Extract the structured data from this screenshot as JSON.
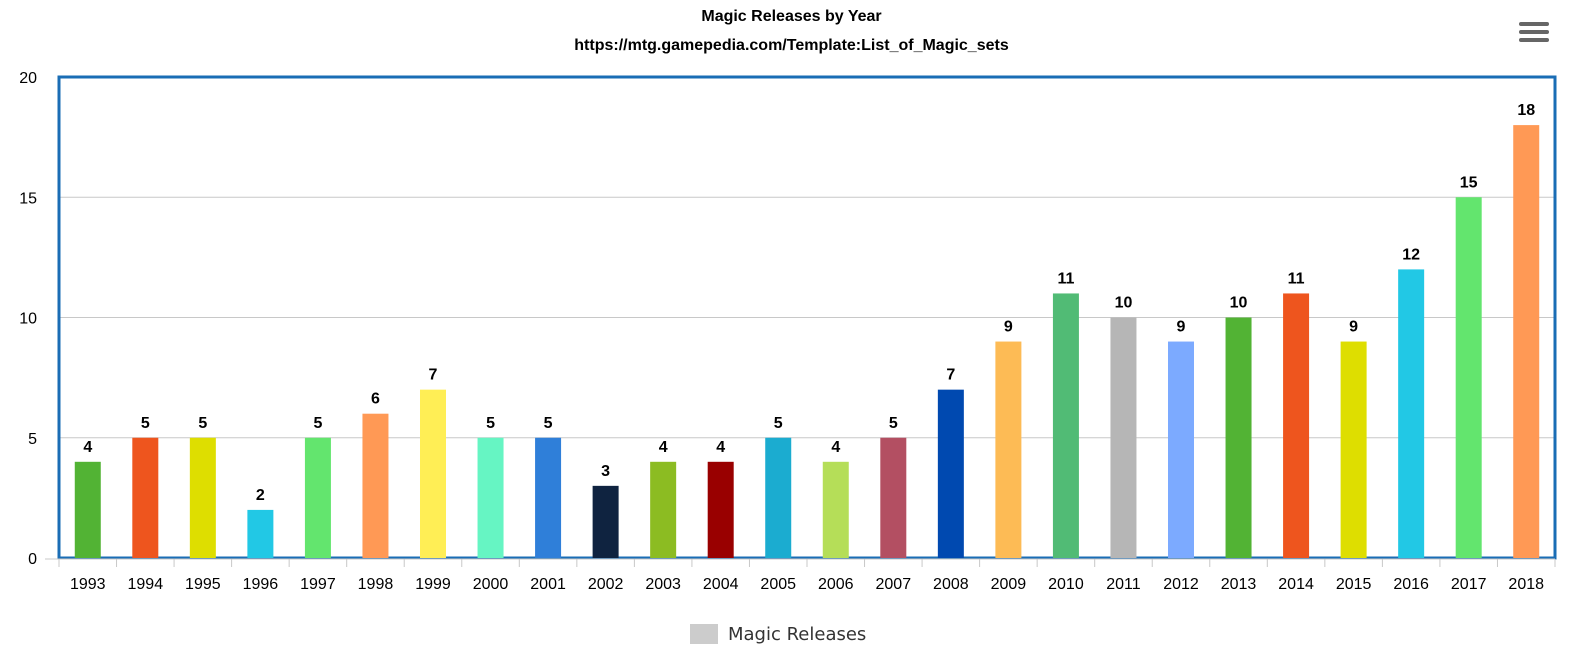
{
  "chart_data": {
    "type": "bar",
    "title": "Magic Releases by Year",
    "subtitle": "https://mtg.gamepedia.com/Template:List_of_Magic_sets",
    "categories": [
      "1993",
      "1994",
      "1995",
      "1996",
      "1997",
      "1998",
      "1999",
      "2000",
      "2001",
      "2002",
      "2003",
      "2004",
      "2005",
      "2006",
      "2007",
      "2008",
      "2009",
      "2010",
      "2011",
      "2012",
      "2013",
      "2014",
      "2015",
      "2016",
      "2017",
      "2018"
    ],
    "series": [
      {
        "name": "Magic Releases",
        "values": [
          4,
          5,
          5,
          2,
          5,
          6,
          7,
          5,
          5,
          3,
          4,
          4,
          5,
          4,
          5,
          7,
          9,
          11,
          10,
          9,
          10,
          11,
          9,
          12,
          15,
          18
        ]
      }
    ],
    "bar_colors": [
      "#52b334",
      "#ee551e",
      "#dede00",
      "#22c8e5",
      "#63e56e",
      "#ff9955",
      "#ffee55",
      "#66f5c3",
      "#2f7fd9",
      "#0f2340",
      "#8cbc22",
      "#990000",
      "#1bacd0",
      "#b5de58",
      "#b34f62",
      "#0049b0",
      "#fdbb55",
      "#51bb75",
      "#b6b6b6",
      "#7caaff",
      "#52b334",
      "#ee551e",
      "#dede00",
      "#22c8e5",
      "#63e56e",
      "#ff9955"
    ],
    "ylim": [
      0,
      20
    ],
    "yticks": [
      0,
      5,
      10,
      15,
      20
    ],
    "legend_position": "bottom-center",
    "legend_color": "#cccccc",
    "plot_border_color": "#1a6db5",
    "grid": true
  }
}
